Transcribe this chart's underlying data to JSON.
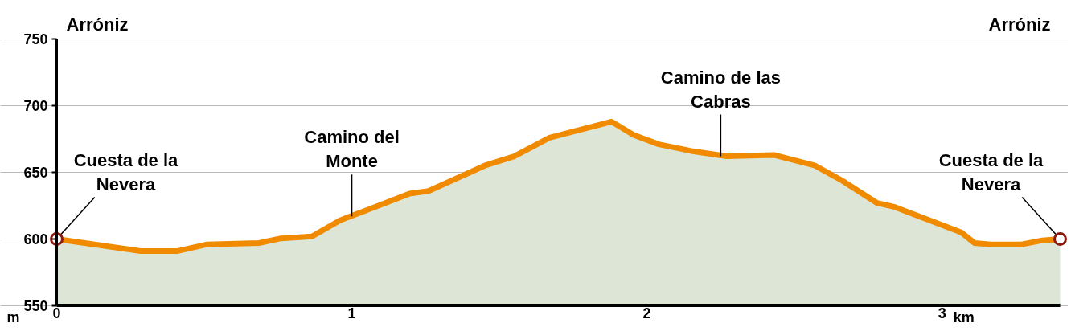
{
  "chart_data": {
    "type": "area",
    "xlabel": "km",
    "ylabel": "m",
    "x": [
      0,
      0.285,
      0.41,
      0.51,
      0.685,
      0.76,
      0.865,
      0.96,
      1.09,
      1.195,
      1.26,
      1.45,
      1.55,
      1.67,
      1.88,
      1.955,
      2.04,
      2.15,
      2.27,
      2.43,
      2.57,
      2.66,
      2.78,
      2.84,
      3.065,
      3.11,
      3.165,
      3.27,
      3.34,
      3.4
    ],
    "series": [
      {
        "color": "#f08a00",
        "values": [
          600,
          591,
          591,
          596,
          597,
          600.5,
          602,
          614,
          625,
          634,
          636,
          655,
          662,
          676,
          688,
          678,
          671,
          666,
          662,
          663,
          655,
          644,
          627,
          624,
          605,
          597,
          596,
          596,
          599,
          600
        ]
      }
    ],
    "xlim": [
      0,
      3.4
    ],
    "xticks": [
      0,
      1,
      2,
      3
    ],
    "ylim": [
      550,
      750
    ],
    "yticks": [
      550,
      600,
      650,
      700,
      750
    ],
    "grid": "y",
    "marker": "none",
    "line_style": "solid",
    "annotations": [
      "Arróniz",
      "Arróniz",
      {
        "text": "Cuesta de la Nevera",
        "x": 0,
        "y": 600
      },
      {
        "text": "Camino del Monte",
        "x": 1.0,
        "y": 617
      },
      {
        "text": "Camino de las Cabras",
        "x": 2.25,
        "y": 662
      },
      {
        "text": "Cuesta de la Nevera",
        "x": 3.4,
        "y": 600
      }
    ]
  }
}
